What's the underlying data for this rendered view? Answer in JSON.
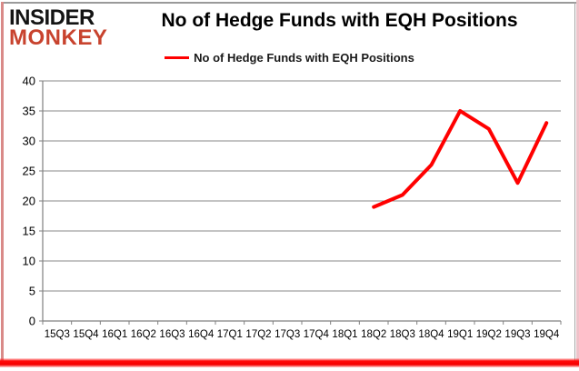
{
  "brand": {
    "logo_line1": "INSIDER",
    "logo_line2": "MONKEY",
    "logo_color_primary": "#141414",
    "logo_color_secondary": "#c8432e"
  },
  "header": {
    "title": "No of Hedge Funds with EQH Positions"
  },
  "legend": {
    "items": [
      {
        "label": "No of Hedge Funds with EQH Positions",
        "color": "#ff0000"
      }
    ]
  },
  "chart_data": {
    "type": "line",
    "title": "No of Hedge Funds with EQH Positions",
    "categories": [
      "15Q3",
      "15Q4",
      "16Q1",
      "16Q2",
      "16Q3",
      "16Q4",
      "17Q1",
      "17Q2",
      "17Q3",
      "17Q4",
      "18Q1",
      "18Q2",
      "18Q3",
      "18Q4",
      "19Q1",
      "19Q2",
      "19Q3",
      "19Q4"
    ],
    "series": [
      {
        "name": "No of Hedge Funds with EQH Positions",
        "color": "#ff0000",
        "values": [
          null,
          null,
          null,
          null,
          null,
          null,
          null,
          null,
          null,
          null,
          null,
          19,
          21,
          26,
          35,
          32,
          23,
          33
        ]
      }
    ],
    "ylim": [
      0,
      40
    ],
    "yticks": [
      0,
      5,
      10,
      15,
      20,
      25,
      30,
      35,
      40
    ],
    "grid": true,
    "legend_position": "top-center",
    "axis_color": "#808080",
    "gridline_color": "#8a8a8a",
    "label_color": "#000000"
  }
}
